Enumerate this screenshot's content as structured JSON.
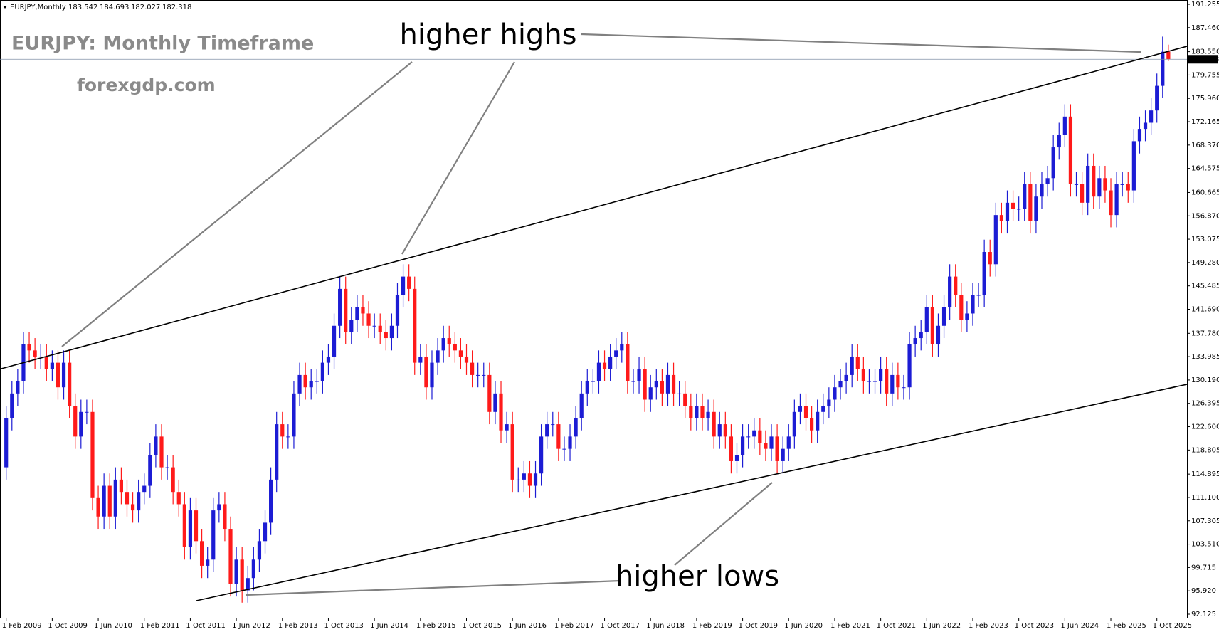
{
  "chart_data": {
    "type": "candlestick",
    "symbol": "EURJPY,Monthly",
    "title": "EURJPY: Monthly Timeframe",
    "subtitle": "forexgdp.com",
    "annotations": [
      "higher highs",
      "higher lows"
    ],
    "up_color": "#1c1cd4",
    "down_color": "#ff1a1a",
    "categories": [
      "1 Feb 2009",
      null,
      null,
      null,
      null,
      null,
      null,
      null,
      "1 Oct 2009",
      null,
      null,
      null,
      null,
      null,
      null,
      null,
      "1 Jun 2010",
      null,
      null,
      null,
      null,
      null,
      null,
      null,
      "1 Feb 2011",
      null,
      null,
      null,
      null,
      null,
      null,
      null,
      "1 Oct 2011",
      null,
      null,
      null,
      null,
      null,
      null,
      null,
      "1 Jun 2012",
      null,
      null,
      null,
      null,
      null,
      null,
      null,
      "1 Feb 2013",
      null,
      null,
      null,
      null,
      null,
      null,
      null,
      "1 Oct 2013",
      null,
      null,
      null,
      null,
      null,
      null,
      null,
      "1 Jun 2014",
      null,
      null,
      null,
      null,
      null,
      null,
      null,
      "1 Feb 2015",
      null,
      null,
      null,
      null,
      null,
      null,
      null,
      "1 Oct 2015",
      null,
      null,
      null,
      null,
      null,
      null,
      null,
      "1 Jun 2016",
      null,
      null,
      null,
      null,
      null,
      null,
      null,
      "1 Feb 2017",
      null,
      null,
      null,
      null,
      null,
      null,
      null,
      "1 Oct 2017",
      null,
      null,
      null,
      null,
      null,
      null,
      null,
      "1 Jun 2018",
      null,
      null,
      null,
      null,
      null,
      null,
      null,
      "1 Feb 2019",
      null,
      null,
      null,
      null,
      null,
      null,
      null,
      "1 Oct 2019",
      null,
      null,
      null,
      null,
      null,
      null,
      null,
      "1 Jun 2020",
      null,
      null,
      null,
      null,
      null,
      null,
      null,
      "1 Feb 2021",
      null,
      null,
      null,
      null,
      null,
      null,
      null,
      "1 Oct 2021",
      null,
      null,
      null,
      null,
      null,
      null,
      null,
      "1 Jun 2022",
      null,
      null,
      null,
      null,
      null,
      null,
      null,
      "1 Feb 2023",
      null,
      null,
      null,
      null,
      null,
      null,
      null,
      "1 Oct 2023",
      null,
      null,
      null,
      null,
      null,
      null,
      null,
      "1 Jun 2024",
      null,
      null,
      null,
      null,
      null,
      null,
      null,
      "1 Feb 2025",
      null,
      null,
      null,
      null,
      null,
      null,
      null,
      "1 Oct 2025",
      null,
      null
    ],
    "open": [
      116,
      124,
      128,
      130,
      136,
      135,
      134,
      134,
      132,
      133,
      129,
      133,
      126,
      121,
      125,
      125,
      111,
      108,
      113,
      108,
      114,
      112,
      110,
      109,
      112,
      113,
      118,
      121,
      116,
      116,
      112,
      110,
      103,
      109,
      104,
      100,
      101,
      109,
      110,
      106,
      97,
      101,
      96,
      98,
      101,
      104,
      107,
      114,
      123,
      121,
      121,
      128,
      131,
      129,
      130,
      130,
      133,
      134,
      139,
      145,
      138,
      140,
      142,
      141,
      139,
      139,
      138,
      137,
      139,
      144,
      147,
      145,
      133,
      134,
      129,
      133,
      135,
      137,
      136,
      135,
      134,
      133,
      131,
      131,
      131,
      125,
      128,
      122,
      123,
      114,
      114,
      115,
      113,
      115,
      121,
      123,
      123,
      119,
      119,
      121,
      124,
      128,
      130,
      130,
      133,
      132,
      134,
      135,
      136,
      130,
      130,
      132,
      127,
      129,
      130,
      128,
      131,
      128,
      128,
      126,
      124,
      126,
      124,
      125,
      121,
      123,
      121,
      117,
      118,
      121,
      121,
      122,
      120,
      119,
      121,
      117,
      119,
      121,
      125,
      126,
      124,
      122,
      125,
      126,
      127,
      129,
      130,
      131,
      134,
      132,
      130,
      130,
      130,
      132,
      128,
      131,
      129,
      129,
      136,
      137,
      138,
      142,
      136,
      139,
      142,
      147,
      144,
      140,
      141,
      144,
      144,
      151,
      149,
      157,
      156,
      159,
      158,
      158,
      162,
      156,
      160,
      162,
      163,
      168,
      170,
      173,
      162,
      162,
      159,
      165,
      160,
      163,
      161,
      157,
      162,
      162,
      161,
      169,
      171,
      172,
      174,
      178,
      183.542
    ],
    "high": [
      126,
      130,
      132,
      138,
      138,
      137,
      136,
      136,
      135,
      135,
      135,
      135,
      128,
      127,
      127,
      127,
      113,
      115,
      115,
      116,
      116,
      114,
      112,
      114,
      115,
      120,
      123,
      123,
      118,
      118,
      114,
      112,
      111,
      111,
      106,
      103,
      111,
      112,
      112,
      108,
      103,
      103,
      100,
      103,
      106,
      109,
      116,
      125,
      125,
      123,
      130,
      133,
      133,
      132,
      132,
      135,
      136,
      141,
      147,
      147,
      142,
      144,
      144,
      143,
      141,
      141,
      140,
      141,
      146,
      149,
      149,
      147,
      136,
      136,
      135,
      137,
      139,
      139,
      138,
      137,
      136,
      135,
      133,
      133,
      133,
      130,
      130,
      125,
      125,
      116,
      117,
      117,
      117,
      123,
      125,
      125,
      125,
      121,
      123,
      126,
      130,
      132,
      132,
      135,
      135,
      136,
      137,
      138,
      138,
      132,
      134,
      134,
      131,
      132,
      132,
      133,
      133,
      130,
      130,
      128,
      128,
      128,
      127,
      127,
      125,
      125,
      123,
      120,
      123,
      123,
      124,
      124,
      122,
      123,
      123,
      121,
      123,
      127,
      128,
      128,
      126,
      127,
      128,
      129,
      131,
      132,
      133,
      136,
      136,
      134,
      132,
      132,
      134,
      134,
      133,
      133,
      131,
      138,
      139,
      140,
      144,
      144,
      141,
      144,
      149,
      149,
      146,
      143,
      146,
      146,
      153,
      153,
      159,
      159,
      161,
      161,
      160,
      164,
      164,
      162,
      164,
      165,
      170,
      172,
      175,
      175,
      164,
      164,
      167,
      167,
      165,
      165,
      163,
      164,
      164,
      164,
      171,
      173,
      174,
      176,
      180,
      186,
      184.693
    ],
    "low": [
      114,
      122,
      126,
      128,
      133,
      132,
      132,
      130,
      130,
      127,
      127,
      124,
      119,
      119,
      123,
      109,
      106,
      106,
      106,
      106,
      110,
      108,
      107,
      107,
      110,
      111,
      116,
      114,
      114,
      110,
      108,
      101,
      101,
      102,
      98,
      98,
      99,
      107,
      104,
      95,
      95,
      94,
      94,
      96,
      99,
      102,
      105,
      112,
      119,
      119,
      119,
      126,
      127,
      127,
      128,
      128,
      131,
      132,
      137,
      136,
      136,
      138,
      139,
      137,
      137,
      136,
      135,
      135,
      137,
      142,
      143,
      131,
      131,
      127,
      127,
      131,
      133,
      134,
      133,
      132,
      131,
      129,
      129,
      129,
      123,
      123,
      120,
      120,
      112,
      112,
      112,
      111,
      111,
      113,
      119,
      121,
      117,
      117,
      117,
      119,
      122,
      126,
      128,
      128,
      130,
      130,
      132,
      133,
      128,
      128,
      128,
      125,
      125,
      127,
      126,
      126,
      126,
      126,
      124,
      122,
      122,
      122,
      122,
      119,
      119,
      119,
      115,
      115,
      116,
      119,
      119,
      118,
      117,
      117,
      115,
      115,
      117,
      119,
      123,
      122,
      120,
      120,
      123,
      124,
      125,
      127,
      128,
      129,
      130,
      128,
      128,
      128,
      128,
      126,
      126,
      127,
      127,
      127,
      134,
      135,
      136,
      134,
      134,
      137,
      140,
      142,
      138,
      138,
      139,
      142,
      142,
      147,
      147,
      154,
      154,
      156,
      156,
      156,
      154,
      154,
      158,
      160,
      161,
      166,
      168,
      160,
      160,
      157,
      157,
      158,
      158,
      159,
      155,
      155,
      160,
      159,
      159,
      167,
      169,
      170,
      172,
      176,
      182.027
    ],
    "close": [
      124,
      128,
      130,
      136,
      135,
      134,
      134,
      132,
      133,
      129,
      133,
      126,
      121,
      125,
      125,
      111,
      108,
      113,
      108,
      114,
      112,
      110,
      109,
      112,
      113,
      118,
      121,
      116,
      116,
      112,
      110,
      103,
      109,
      104,
      100,
      101,
      109,
      110,
      106,
      97,
      101,
      96,
      98,
      101,
      104,
      107,
      114,
      123,
      121,
      121,
      128,
      131,
      129,
      130,
      130,
      133,
      134,
      139,
      145,
      138,
      140,
      142,
      141,
      139,
      139,
      138,
      137,
      139,
      144,
      147,
      145,
      133,
      134,
      129,
      133,
      135,
      137,
      136,
      135,
      134,
      133,
      131,
      131,
      131,
      125,
      128,
      122,
      123,
      114,
      114,
      115,
      113,
      115,
      121,
      123,
      123,
      119,
      119,
      121,
      124,
      128,
      130,
      130,
      133,
      132,
      134,
      135,
      136,
      130,
      130,
      132,
      127,
      129,
      130,
      128,
      131,
      128,
      128,
      126,
      124,
      126,
      124,
      125,
      121,
      123,
      121,
      117,
      118,
      121,
      121,
      122,
      120,
      119,
      121,
      117,
      119,
      121,
      125,
      126,
      124,
      122,
      125,
      126,
      127,
      129,
      130,
      131,
      134,
      132,
      130,
      130,
      130,
      132,
      128,
      131,
      129,
      129,
      136,
      137,
      138,
      142,
      136,
      139,
      142,
      147,
      144,
      140,
      141,
      144,
      144,
      151,
      149,
      157,
      156,
      159,
      158,
      158,
      162,
      156,
      160,
      162,
      163,
      168,
      170,
      173,
      162,
      162,
      159,
      165,
      160,
      163,
      161,
      157,
      162,
      162,
      161,
      169,
      171,
      172,
      174,
      178,
      183.542,
      182.318
    ],
    "ylim": [
      92.125,
      191.255
    ],
    "yticks": [
      191.255,
      {
        "value": 187.46,
        "label": "187.460"
      },
      {
        "value": 183.55,
        "label": "183.550"
      },
      179.755,
      {
        "value": 175.96,
        "label": "175.960"
      },
      172.165,
      {
        "value": 168.37,
        "label": "168.370"
      },
      164.575,
      160.665,
      {
        "value": 156.87,
        "label": "156.870"
      },
      153.075,
      {
        "value": 149.28,
        "label": "149.280"
      },
      145.485,
      {
        "value": 141.69,
        "label": "141.690"
      },
      {
        "value": 137.78,
        "label": "137.780"
      },
      133.985,
      {
        "value": 130.19,
        "label": "130.190"
      },
      126.395,
      {
        "value": 122.6,
        "label": "122.600"
      },
      118.805,
      114.895,
      {
        "value": 111.1,
        "label": "111.100"
      },
      107.305,
      {
        "value": 103.51,
        "label": "103.510"
      },
      99.715,
      {
        "value": 95.92,
        "label": "95.920"
      },
      92.125
    ],
    "grid": false
  }
}
